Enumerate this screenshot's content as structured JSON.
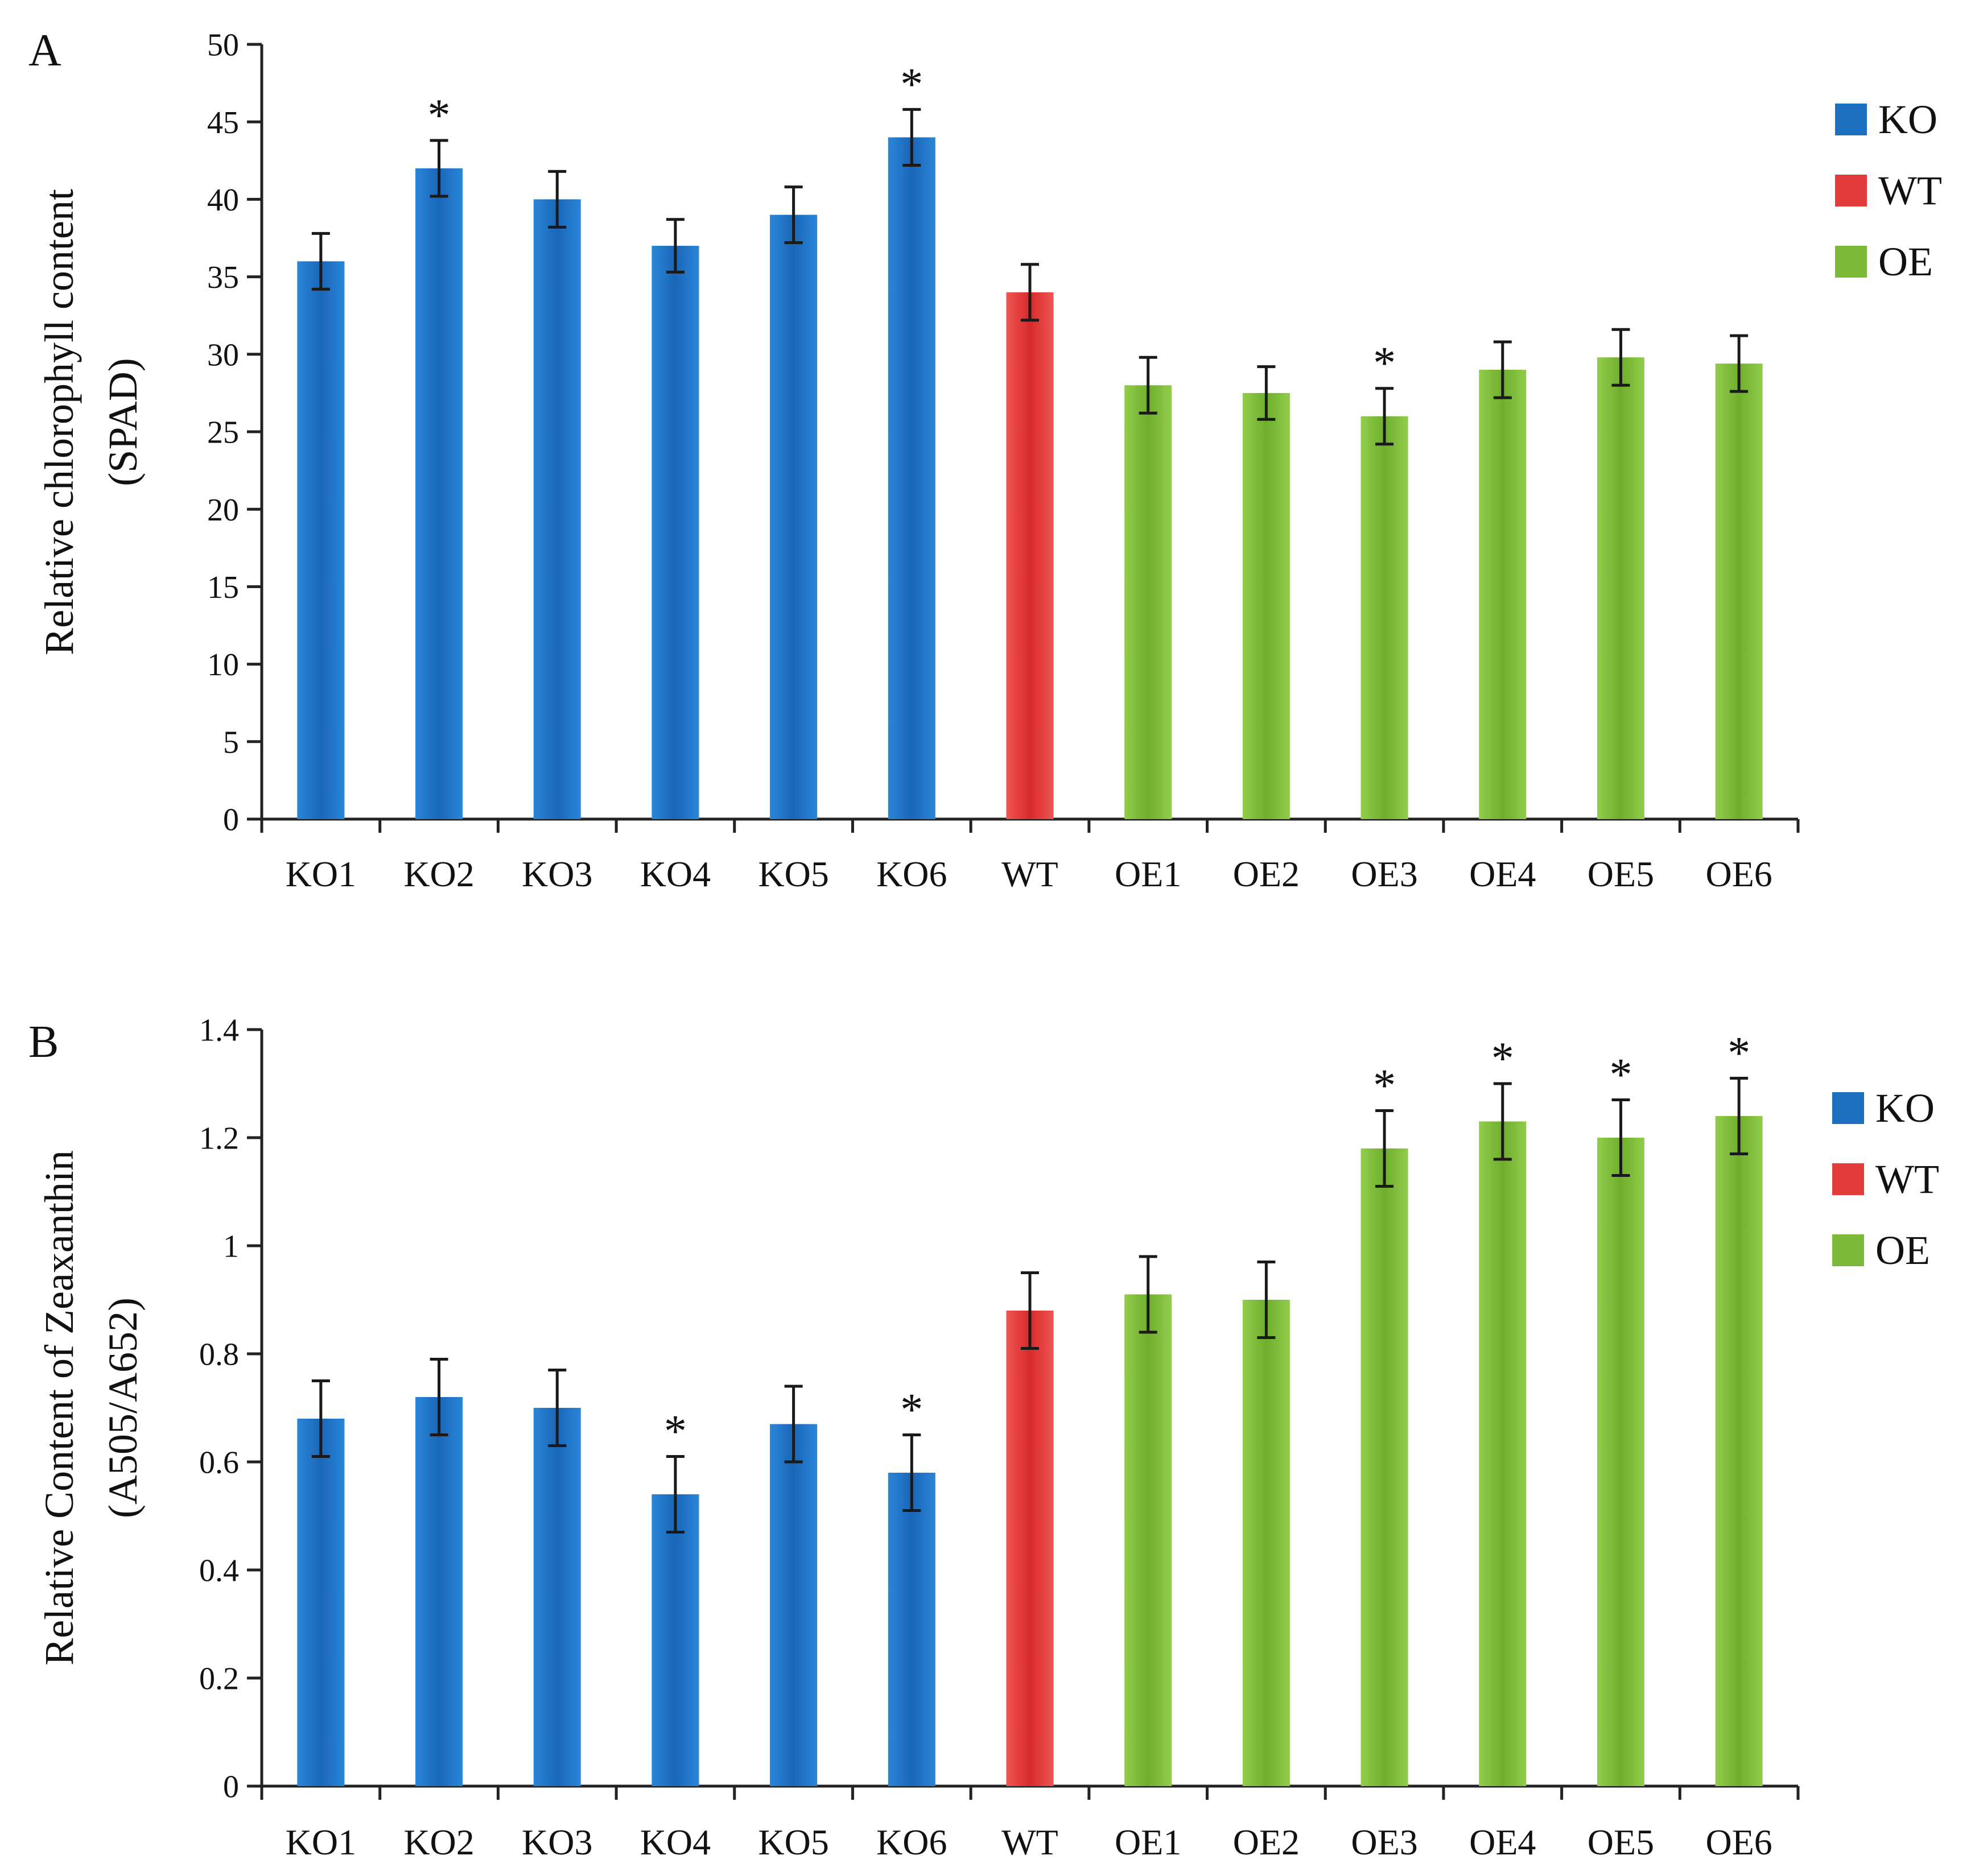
{
  "colors": {
    "KO": "#1f6fc0",
    "WT": "#e23b3b",
    "OE": "#7dba3a"
  },
  "chart_data": [
    {
      "panel_label": "A",
      "type": "bar",
      "ylabel": "Relative chlorophyll content",
      "ylabel_line2": "(SPAD)",
      "ylim": [
        0,
        50
      ],
      "yticks": [
        0,
        5,
        10,
        15,
        20,
        25,
        30,
        35,
        40,
        45,
        50
      ],
      "categories": [
        "KO1",
        "KO2",
        "KO3",
        "KO4",
        "KO5",
        "KO6",
        "WT",
        "OE1",
        "OE2",
        "OE3",
        "OE4",
        "OE5",
        "OE6"
      ],
      "groups": [
        "KO",
        "KO",
        "KO",
        "KO",
        "KO",
        "KO",
        "WT",
        "OE",
        "OE",
        "OE",
        "OE",
        "OE",
        "OE"
      ],
      "values": [
        36,
        42,
        40,
        37,
        39,
        44,
        34,
        28,
        27.5,
        26,
        29,
        29.8,
        29.4
      ],
      "errors": [
        1.8,
        1.8,
        1.8,
        1.7,
        1.8,
        1.8,
        1.8,
        1.8,
        1.7,
        1.8,
        1.8,
        1.8,
        1.8
      ],
      "significance": [
        "",
        "*",
        "",
        "",
        "",
        "*",
        "",
        "",
        "",
        "*",
        "",
        "",
        ""
      ],
      "legend": [
        "KO",
        "WT",
        "OE"
      ],
      "legend_position": "top-right",
      "grid": false
    },
    {
      "panel_label": "B",
      "type": "bar",
      "ylabel": "Relative Content of Zeaxanthin",
      "ylabel_line2": "(A505/A652)",
      "ylim": [
        0,
        1.4
      ],
      "yticks": [
        "0",
        "0.2",
        "0.4",
        "0.6",
        "0.8",
        "1",
        "1.2",
        "1.4"
      ],
      "categories": [
        "KO1",
        "KO2",
        "KO3",
        "KO4",
        "KO5",
        "KO6",
        "WT",
        "OE1",
        "OE2",
        "OE3",
        "OE4",
        "OE5",
        "OE6"
      ],
      "groups": [
        "KO",
        "KO",
        "KO",
        "KO",
        "KO",
        "KO",
        "WT",
        "OE",
        "OE",
        "OE",
        "OE",
        "OE",
        "OE"
      ],
      "values": [
        0.68,
        0.72,
        0.7,
        0.54,
        0.67,
        0.58,
        0.88,
        0.91,
        0.9,
        1.18,
        1.23,
        1.2,
        1.24
      ],
      "errors": [
        0.07,
        0.07,
        0.07,
        0.07,
        0.07,
        0.07,
        0.07,
        0.07,
        0.07,
        0.07,
        0.07,
        0.07,
        0.07
      ],
      "significance": [
        "",
        "",
        "",
        "*",
        "",
        "*",
        "",
        "",
        "",
        "*",
        "*",
        "*",
        "*"
      ],
      "legend": [
        "KO",
        "WT",
        "OE"
      ],
      "legend_position": "top-right",
      "grid": false
    }
  ]
}
